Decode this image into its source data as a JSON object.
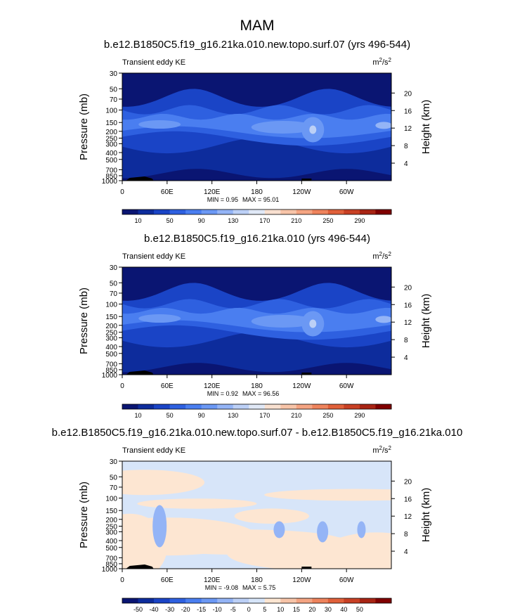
{
  "figure": {
    "title": "MAM",
    "xtick_labels": [
      "0",
      "60E",
      "120E",
      "180",
      "120W",
      "60W"
    ],
    "x_label_lons": [
      0,
      60,
      120,
      180,
      240,
      300
    ],
    "xlim": [
      0,
      360
    ],
    "pressure_ticks": [
      30,
      50,
      70,
      100,
      150,
      200,
      250,
      300,
      400,
      500,
      700,
      850,
      1000
    ],
    "pressure_tick_labels": [
      "30",
      "50",
      "70",
      "100",
      "150",
      "200",
      "250",
      "300",
      "400",
      "500",
      "700",
      "850",
      "1000"
    ],
    "height_ticks_km": [
      4,
      8,
      12,
      16,
      20
    ],
    "height_tick_labels": [
      "4",
      "8",
      "12",
      "16",
      "20"
    ]
  },
  "chart_data": [
    {
      "type": "heatmap",
      "title": "b.e12.B1850C5.f19_g16.21ka.010.new.topo.surf.07 (yrs 496-544)",
      "left_string": "Transient eddy KE",
      "units_base": "m",
      "units_exp1": "2",
      "units_mid": "/s",
      "units_exp2": "2",
      "ylabel": "Pressure (mb)",
      "ylabel_right": "Height (km)",
      "min_label": "MIN =   0.95",
      "max_label": "MAX =   95.01",
      "min": 0.95,
      "max": 95.01,
      "jet_core_lon": 255,
      "colorbar": {
        "labels": [
          "10",
          "50",
          "90",
          "130",
          "170",
          "210",
          "250",
          "290"
        ],
        "colors": [
          "#0a1572",
          "#0d2c9c",
          "#1a44c6",
          "#2e60e0",
          "#4a7ef0",
          "#6b98f4",
          "#94b4f6",
          "#bcd0f6",
          "#e0e8f6",
          "#f8e0d0",
          "#f7c4a8",
          "#f4a482",
          "#ee835c",
          "#e0603a",
          "#c84024",
          "#a82414",
          "#800000"
        ]
      }
    },
    {
      "type": "heatmap",
      "title": "b.e12.B1850C5.f19_g16.21ka.010 (yrs 496-544)",
      "left_string": "Transient eddy KE",
      "units_base": "m",
      "units_exp1": "2",
      "units_mid": "/s",
      "units_exp2": "2",
      "ylabel": "Pressure (mb)",
      "ylabel_right": "Height (km)",
      "min_label": "MIN =   0.92",
      "max_label": "MAX =   96.56",
      "min": 0.92,
      "max": 96.56,
      "jet_core_lon": 255,
      "colorbar": {
        "labels": [
          "10",
          "50",
          "90",
          "130",
          "170",
          "210",
          "250",
          "290"
        ],
        "colors": [
          "#0a1572",
          "#0d2c9c",
          "#1a44c6",
          "#2e60e0",
          "#4a7ef0",
          "#6b98f4",
          "#94b4f6",
          "#bcd0f6",
          "#e0e8f6",
          "#f8e0d0",
          "#f7c4a8",
          "#f4a482",
          "#ee835c",
          "#e0603a",
          "#c84024",
          "#a82414",
          "#800000"
        ]
      }
    },
    {
      "type": "heatmap",
      "title": "b.e12.B1850C5.f19_g16.21ka.010.new.topo.surf.07 - b.e12.B1850C5.f19_g16.21ka.010",
      "left_string": "Transient eddy KE",
      "units_base": "m",
      "units_exp1": "2",
      "units_mid": "/s",
      "units_exp2": "2",
      "ylabel": "Pressure (mb)",
      "ylabel_right": "Height (km)",
      "min_label": "MIN =  -9.08",
      "max_label": "MAX =   5.75",
      "min": -9.08,
      "max": 5.75,
      "colorbar": {
        "labels": [
          "-50",
          "-40",
          "-30",
          "-20",
          "-15",
          "-10",
          "-5",
          "0",
          "5",
          "10",
          "15",
          "20",
          "30",
          "40",
          "50"
        ],
        "colors": [
          "#0a1572",
          "#0d2c9c",
          "#1a44c6",
          "#2e60e0",
          "#4a7ef0",
          "#6b98f4",
          "#94b4f6",
          "#bcd0f6",
          "#d7e5f9",
          "#fde6d2",
          "#f7c4a8",
          "#f4a482",
          "#ee835c",
          "#e0603a",
          "#c84024",
          "#a82414",
          "#800000"
        ]
      }
    }
  ]
}
